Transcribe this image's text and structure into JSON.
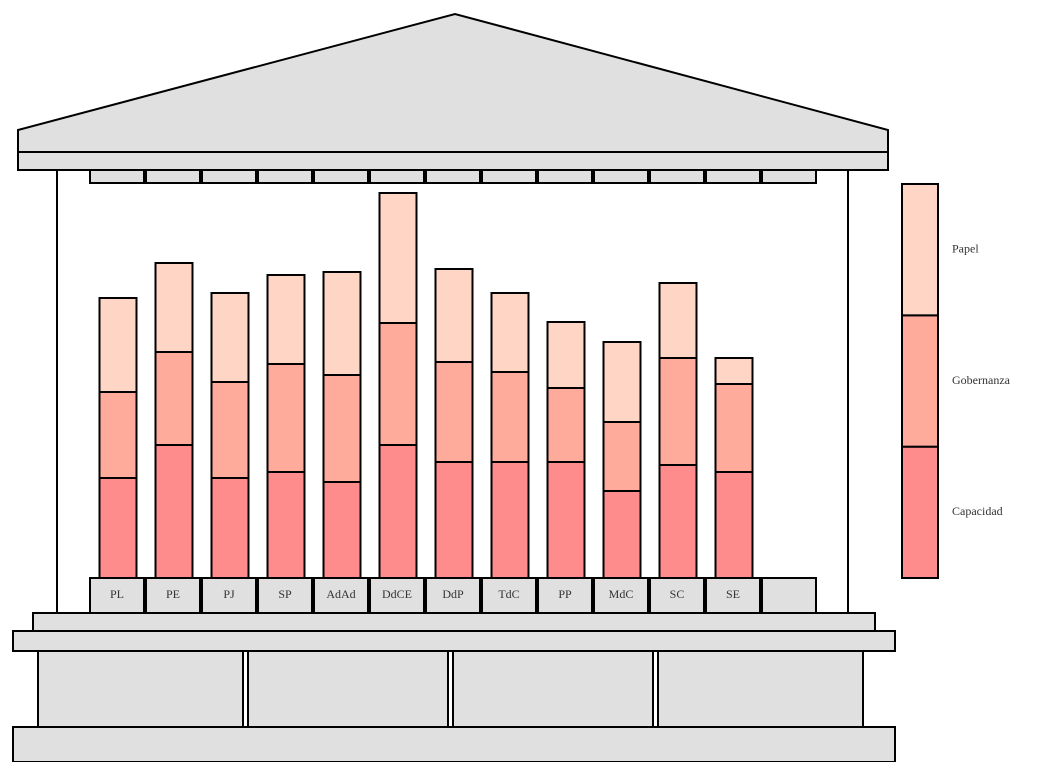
{
  "chart_data": {
    "type": "stacked-bar",
    "categories": [
      "PL",
      "PE",
      "PJ",
      "SP",
      "AdAd",
      "DdCE",
      "DdP",
      "TdC",
      "PP",
      "MdC",
      "SC",
      "SE"
    ],
    "series": [
      {
        "name": "Capacidad",
        "color": "#ff8c8c",
        "values": [
          100,
          133,
          100,
          106,
          96,
          133,
          116,
          116,
          116,
          87,
          113,
          106
        ]
      },
      {
        "name": "Gobernanza",
        "color": "#ffab9c",
        "values": [
          86,
          93,
          96,
          108,
          107,
          122,
          100,
          90,
          74,
          69,
          107,
          88
        ]
      },
      {
        "name": "Papel",
        "color": "#ffd5c5",
        "values": [
          94,
          89,
          89,
          89,
          103,
          130,
          93,
          79,
          66,
          80,
          75,
          26
        ]
      }
    ]
  }
}
